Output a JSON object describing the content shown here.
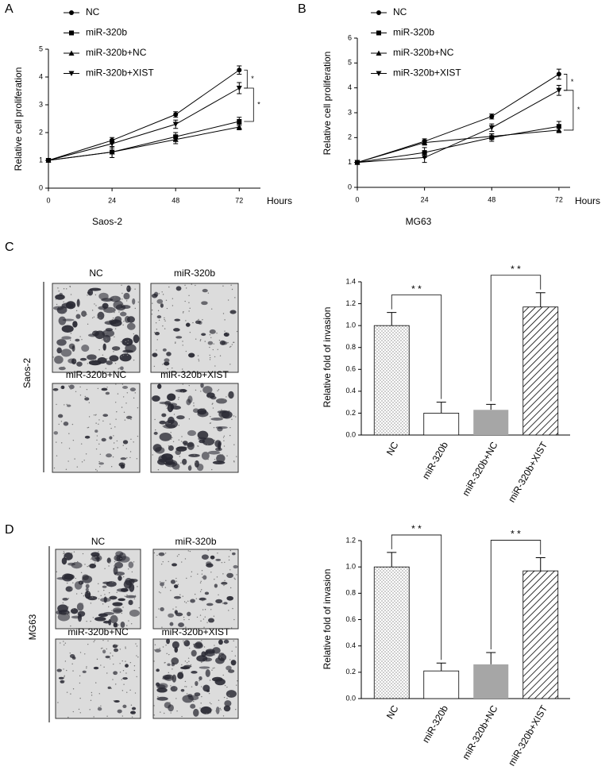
{
  "chart_data": [
    {
      "type": "line",
      "panel": "A",
      "title": "Saos-2",
      "xlabel": "Hours",
      "ylabel": "Relative cell proliferation",
      "x": [
        0,
        24,
        48,
        72
      ],
      "xlim": [
        0,
        80
      ],
      "xticks": [
        0,
        24,
        48,
        72
      ],
      "ylim": [
        0,
        5
      ],
      "yticks": [
        0,
        1,
        2,
        3,
        4,
        5
      ],
      "series": [
        {
          "name": "NC",
          "marker": "circle",
          "color": "#000000",
          "values": [
            1,
            1.72,
            2.65,
            4.25
          ],
          "errors": [
            0,
            0.1,
            0.1,
            0.15
          ]
        },
        {
          "name": "miR-320b",
          "marker": "square",
          "color": "#000000",
          "values": [
            1,
            1.3,
            1.85,
            2.4
          ],
          "errors": [
            0,
            0.2,
            0.15,
            0.15
          ]
        },
        {
          "name": "miR-320b+NC",
          "marker": "triangle-up",
          "color": "#000000",
          "values": [
            1,
            1.3,
            1.75,
            2.2
          ],
          "errors": [
            0,
            0.2,
            0.15,
            0.1
          ]
        },
        {
          "name": "miR-320b+XIST",
          "marker": "triangle-down",
          "color": "#000000",
          "values": [
            1,
            1.6,
            2.3,
            3.6
          ],
          "errors": [
            0,
            0.15,
            0.15,
            0.2
          ]
        }
      ],
      "annotations": [
        {
          "text": "*",
          "between": [
            0,
            3
          ]
        },
        {
          "text": "*",
          "between": [
            3,
            1
          ]
        }
      ]
    },
    {
      "type": "line",
      "panel": "B",
      "title": "MG63",
      "xlabel": "Hours",
      "ylabel": "Relative cell proliferation",
      "x": [
        0,
        24,
        48,
        72
      ],
      "xlim": [
        0,
        76
      ],
      "xticks": [
        0,
        24,
        48,
        72
      ],
      "ylim": [
        0,
        6
      ],
      "yticks": [
        0,
        1,
        2,
        3,
        4,
        5,
        6
      ],
      "series": [
        {
          "name": "NC",
          "marker": "circle",
          "color": "#000000",
          "values": [
            1,
            1.85,
            2.85,
            4.55
          ],
          "errors": [
            0,
            0.1,
            0.1,
            0.2
          ]
        },
        {
          "name": "miR-320b",
          "marker": "square",
          "color": "#000000",
          "values": [
            1,
            1.4,
            2.0,
            2.45
          ],
          "errors": [
            0,
            0.2,
            0.15,
            0.2
          ]
        },
        {
          "name": "miR-320b+NC",
          "marker": "triangle-up",
          "color": "#000000",
          "values": [
            1,
            1.8,
            2.05,
            2.3
          ],
          "errors": [
            0,
            0.1,
            0.1,
            0.1
          ]
        },
        {
          "name": "miR-320b+XIST",
          "marker": "triangle-down",
          "color": "#000000",
          "values": [
            1,
            1.2,
            2.4,
            3.9
          ],
          "errors": [
            0,
            0.2,
            0.15,
            0.2
          ]
        }
      ],
      "annotations": [
        {
          "text": "*",
          "between": [
            0,
            3
          ]
        },
        {
          "text": "*",
          "between": [
            3,
            2
          ]
        }
      ]
    },
    {
      "type": "bar",
      "panel": "C",
      "cell_line": "Saos-2",
      "image_labels": [
        "NC",
        "miR-320b",
        "miR-320b+NC",
        "miR-320b+XIST"
      ],
      "ylabel": "Relative fold of invasion",
      "categories": [
        "NC",
        "miR-320b",
        "miR-320b+NC",
        "miR-320b+XIST"
      ],
      "values": [
        1.0,
        0.2,
        0.23,
        1.17
      ],
      "errors": [
        0.12,
        0.1,
        0.05,
        0.13
      ],
      "fills": [
        "dots",
        "white",
        "#a6a6a6",
        "hatch"
      ],
      "ylim": [
        0,
        1.4
      ],
      "yticks": [
        {
          "value": 0,
          "label": "0.0"
        },
        0.2,
        0.4,
        0.6,
        0.8,
        {
          "value": 1,
          "label": "1.0"
        },
        1.2,
        1.4
      ],
      "annotations": [
        {
          "text": "* *",
          "between": [
            0,
            1
          ]
        },
        {
          "text": "* *",
          "between": [
            2,
            3
          ]
        }
      ]
    },
    {
      "type": "bar",
      "panel": "D",
      "cell_line": "MG63",
      "image_labels": [
        "NC",
        "miR-320b",
        "miR-320b+NC",
        "miR-320b+XIST"
      ],
      "ylabel": "Relative fold of invasion",
      "categories": [
        "NC",
        "miR-320b",
        "miR-320b+NC",
        "miR-320b+XIST"
      ],
      "values": [
        1.0,
        0.21,
        0.26,
        0.97
      ],
      "errors": [
        0.11,
        0.06,
        0.09,
        0.1
      ],
      "fills": [
        "dots",
        "white",
        "#a6a6a6",
        "hatch"
      ],
      "ylim": [
        0,
        1.2
      ],
      "yticks": [
        {
          "value": 0,
          "label": "0.0"
        },
        0.2,
        0.4,
        0.6,
        0.8,
        {
          "value": 1,
          "label": "1.0"
        },
        1.2
      ],
      "annotations": [
        {
          "text": "* *",
          "between": [
            0,
            1
          ]
        },
        {
          "text": "* *",
          "between": [
            2,
            3
          ]
        }
      ]
    }
  ]
}
